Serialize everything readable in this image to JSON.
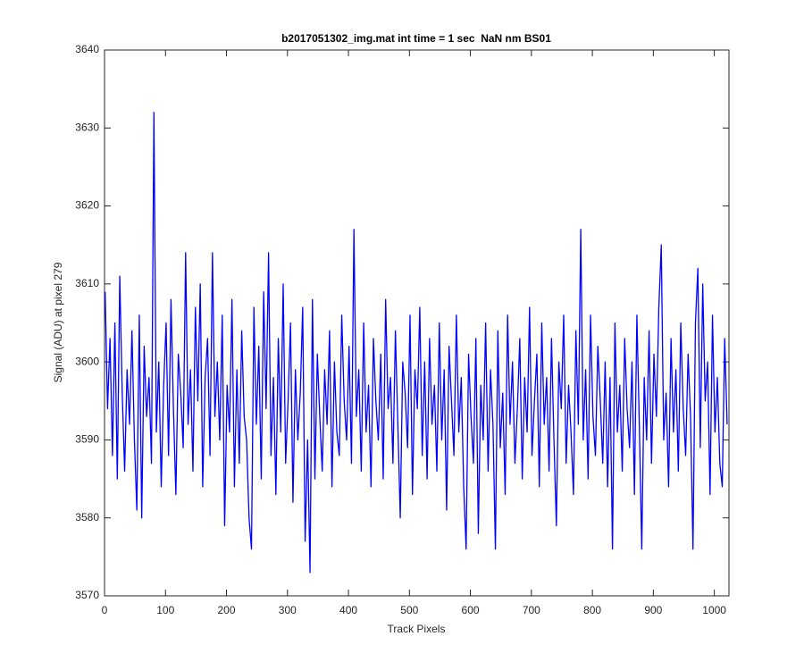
{
  "chart_data": {
    "type": "line",
    "title": "b2017051302_img.mat int time = 1 sec  NaN nm BS01",
    "xlabel": "Track Pixels",
    "ylabel": "Signal (ADU) at pixel 279",
    "color": "#0000ff",
    "grid": false,
    "xlim": [
      0,
      1024
    ],
    "xticks": [
      0,
      100,
      200,
      300,
      400,
      500,
      600,
      700,
      800,
      900,
      1000
    ],
    "ylim": [
      3570,
      3640
    ],
    "yticks": [
      3570,
      3580,
      3590,
      3600,
      3610,
      3620,
      3630,
      3640
    ],
    "x": [
      1,
      5,
      9,
      13,
      17,
      21,
      25,
      29,
      33,
      37,
      41,
      45,
      49,
      53,
      57,
      61,
      65,
      69,
      73,
      77,
      81,
      85,
      89,
      93,
      97,
      101,
      105,
      109,
      113,
      117,
      121,
      125,
      129,
      133,
      137,
      141,
      145,
      149,
      153,
      157,
      161,
      165,
      169,
      173,
      177,
      181,
      185,
      189,
      193,
      197,
      201,
      205,
      209,
      213,
      217,
      221,
      225,
      229,
      233,
      237,
      241,
      245,
      249,
      253,
      257,
      261,
      265,
      269,
      273,
      277,
      281,
      285,
      289,
      293,
      297,
      301,
      305,
      309,
      313,
      317,
      321,
      325,
      329,
      333,
      337,
      341,
      345,
      349,
      353,
      357,
      361,
      365,
      369,
      373,
      377,
      381,
      385,
      389,
      393,
      397,
      401,
      405,
      409,
      413,
      417,
      421,
      425,
      429,
      433,
      437,
      441,
      445,
      449,
      453,
      457,
      461,
      465,
      469,
      473,
      477,
      481,
      485,
      489,
      493,
      497,
      501,
      505,
      509,
      513,
      517,
      521,
      525,
      529,
      533,
      537,
      541,
      545,
      549,
      553,
      557,
      561,
      565,
      569,
      573,
      577,
      581,
      585,
      589,
      593,
      597,
      601,
      605,
      609,
      613,
      617,
      621,
      625,
      629,
      633,
      637,
      641,
      645,
      649,
      653,
      657,
      661,
      665,
      669,
      673,
      677,
      681,
      685,
      689,
      693,
      697,
      701,
      705,
      709,
      713,
      717,
      721,
      725,
      729,
      733,
      737,
      741,
      745,
      749,
      753,
      757,
      761,
      765,
      769,
      773,
      777,
      781,
      785,
      789,
      793,
      797,
      801,
      805,
      809,
      813,
      817,
      821,
      825,
      829,
      833,
      837,
      841,
      845,
      849,
      853,
      857,
      861,
      865,
      869,
      873,
      877,
      881,
      885,
      889,
      893,
      897,
      901,
      905,
      909,
      913,
      917,
      921,
      925,
      929,
      933,
      937,
      941,
      945,
      949,
      953,
      957,
      961,
      965,
      969,
      973,
      977,
      981,
      985,
      989,
      993,
      997,
      1001,
      1005,
      1009,
      1013,
      1017,
      1021
    ],
    "values": [
      3609,
      3594,
      3603,
      3588,
      3605,
      3585,
      3611,
      3596,
      3586,
      3599,
      3592,
      3604,
      3590,
      3581,
      3606,
      3580,
      3602,
      3593,
      3598,
      3587,
      3632,
      3591,
      3600,
      3584,
      3597,
      3605,
      3588,
      3608,
      3594,
      3583,
      3601,
      3596,
      3589,
      3614,
      3592,
      3599,
      3586,
      3607,
      3595,
      3610,
      3584,
      3598,
      3603,
      3588,
      3614,
      3593,
      3600,
      3590,
      3606,
      3579,
      3597,
      3591,
      3608,
      3584,
      3599,
      3587,
      3604,
      3593,
      3590,
      3580,
      3576,
      3607,
      3592,
      3602,
      3585,
      3609,
      3594,
      3614,
      3588,
      3598,
      3583,
      3603,
      3591,
      3610,
      3587,
      3595,
      3605,
      3582,
      3599,
      3590,
      3596,
      3607,
      3577,
      3590,
      3573,
      3608,
      3585,
      3601,
      3593,
      3586,
      3599,
      3592,
      3604,
      3584,
      3600,
      3591,
      3588,
      3606,
      3595,
      3590,
      3602,
      3587,
      3617,
      3593,
      3599,
      3586,
      3605,
      3591,
      3597,
      3584,
      3603,
      3595,
      3590,
      3601,
      3585,
      3608,
      3594,
      3598,
      3587,
      3604,
      3592,
      3580,
      3600,
      3596,
      3589,
      3606,
      3583,
      3599,
      3594,
      3607,
      3588,
      3600,
      3585,
      3603,
      3592,
      3597,
      3586,
      3605,
      3590,
      3599,
      3581,
      3602,
      3595,
      3588,
      3606,
      3591,
      3598,
      3584,
      3576,
      3601,
      3593,
      3587,
      3603,
      3578,
      3597,
      3590,
      3605,
      3586,
      3599,
      3592,
      3576,
      3604,
      3589,
      3596,
      3583,
      3606,
      3592,
      3600,
      3587,
      3594,
      3603,
      3585,
      3598,
      3591,
      3607,
      3588,
      3595,
      3601,
      3584,
      3605,
      3592,
      3598,
      3586,
      3603,
      3590,
      3579,
      3600,
      3594,
      3606,
      3587,
      3597,
      3591,
      3583,
      3604,
      3592,
      3617,
      3590,
      3599,
      3585,
      3606,
      3593,
      3588,
      3602,
      3595,
      3587,
      3600,
      3584,
      3598,
      3576,
      3605,
      3591,
      3597,
      3586,
      3603,
      3594,
      3589,
      3600,
      3583,
      3606,
      3592,
      3576,
      3598,
      3590,
      3604,
      3587,
      3601,
      3593,
      3607,
      3615,
      3590,
      3596,
      3584,
      3603,
      3591,
      3599,
      3586,
      3605,
      3594,
      3588,
      3601,
      3593,
      3576,
      3605,
      3612,
      3589,
      3610,
      3595,
      3600,
      3583,
      3606,
      3591,
      3598,
      3587,
      3584,
      3603,
      3592
    ]
  }
}
